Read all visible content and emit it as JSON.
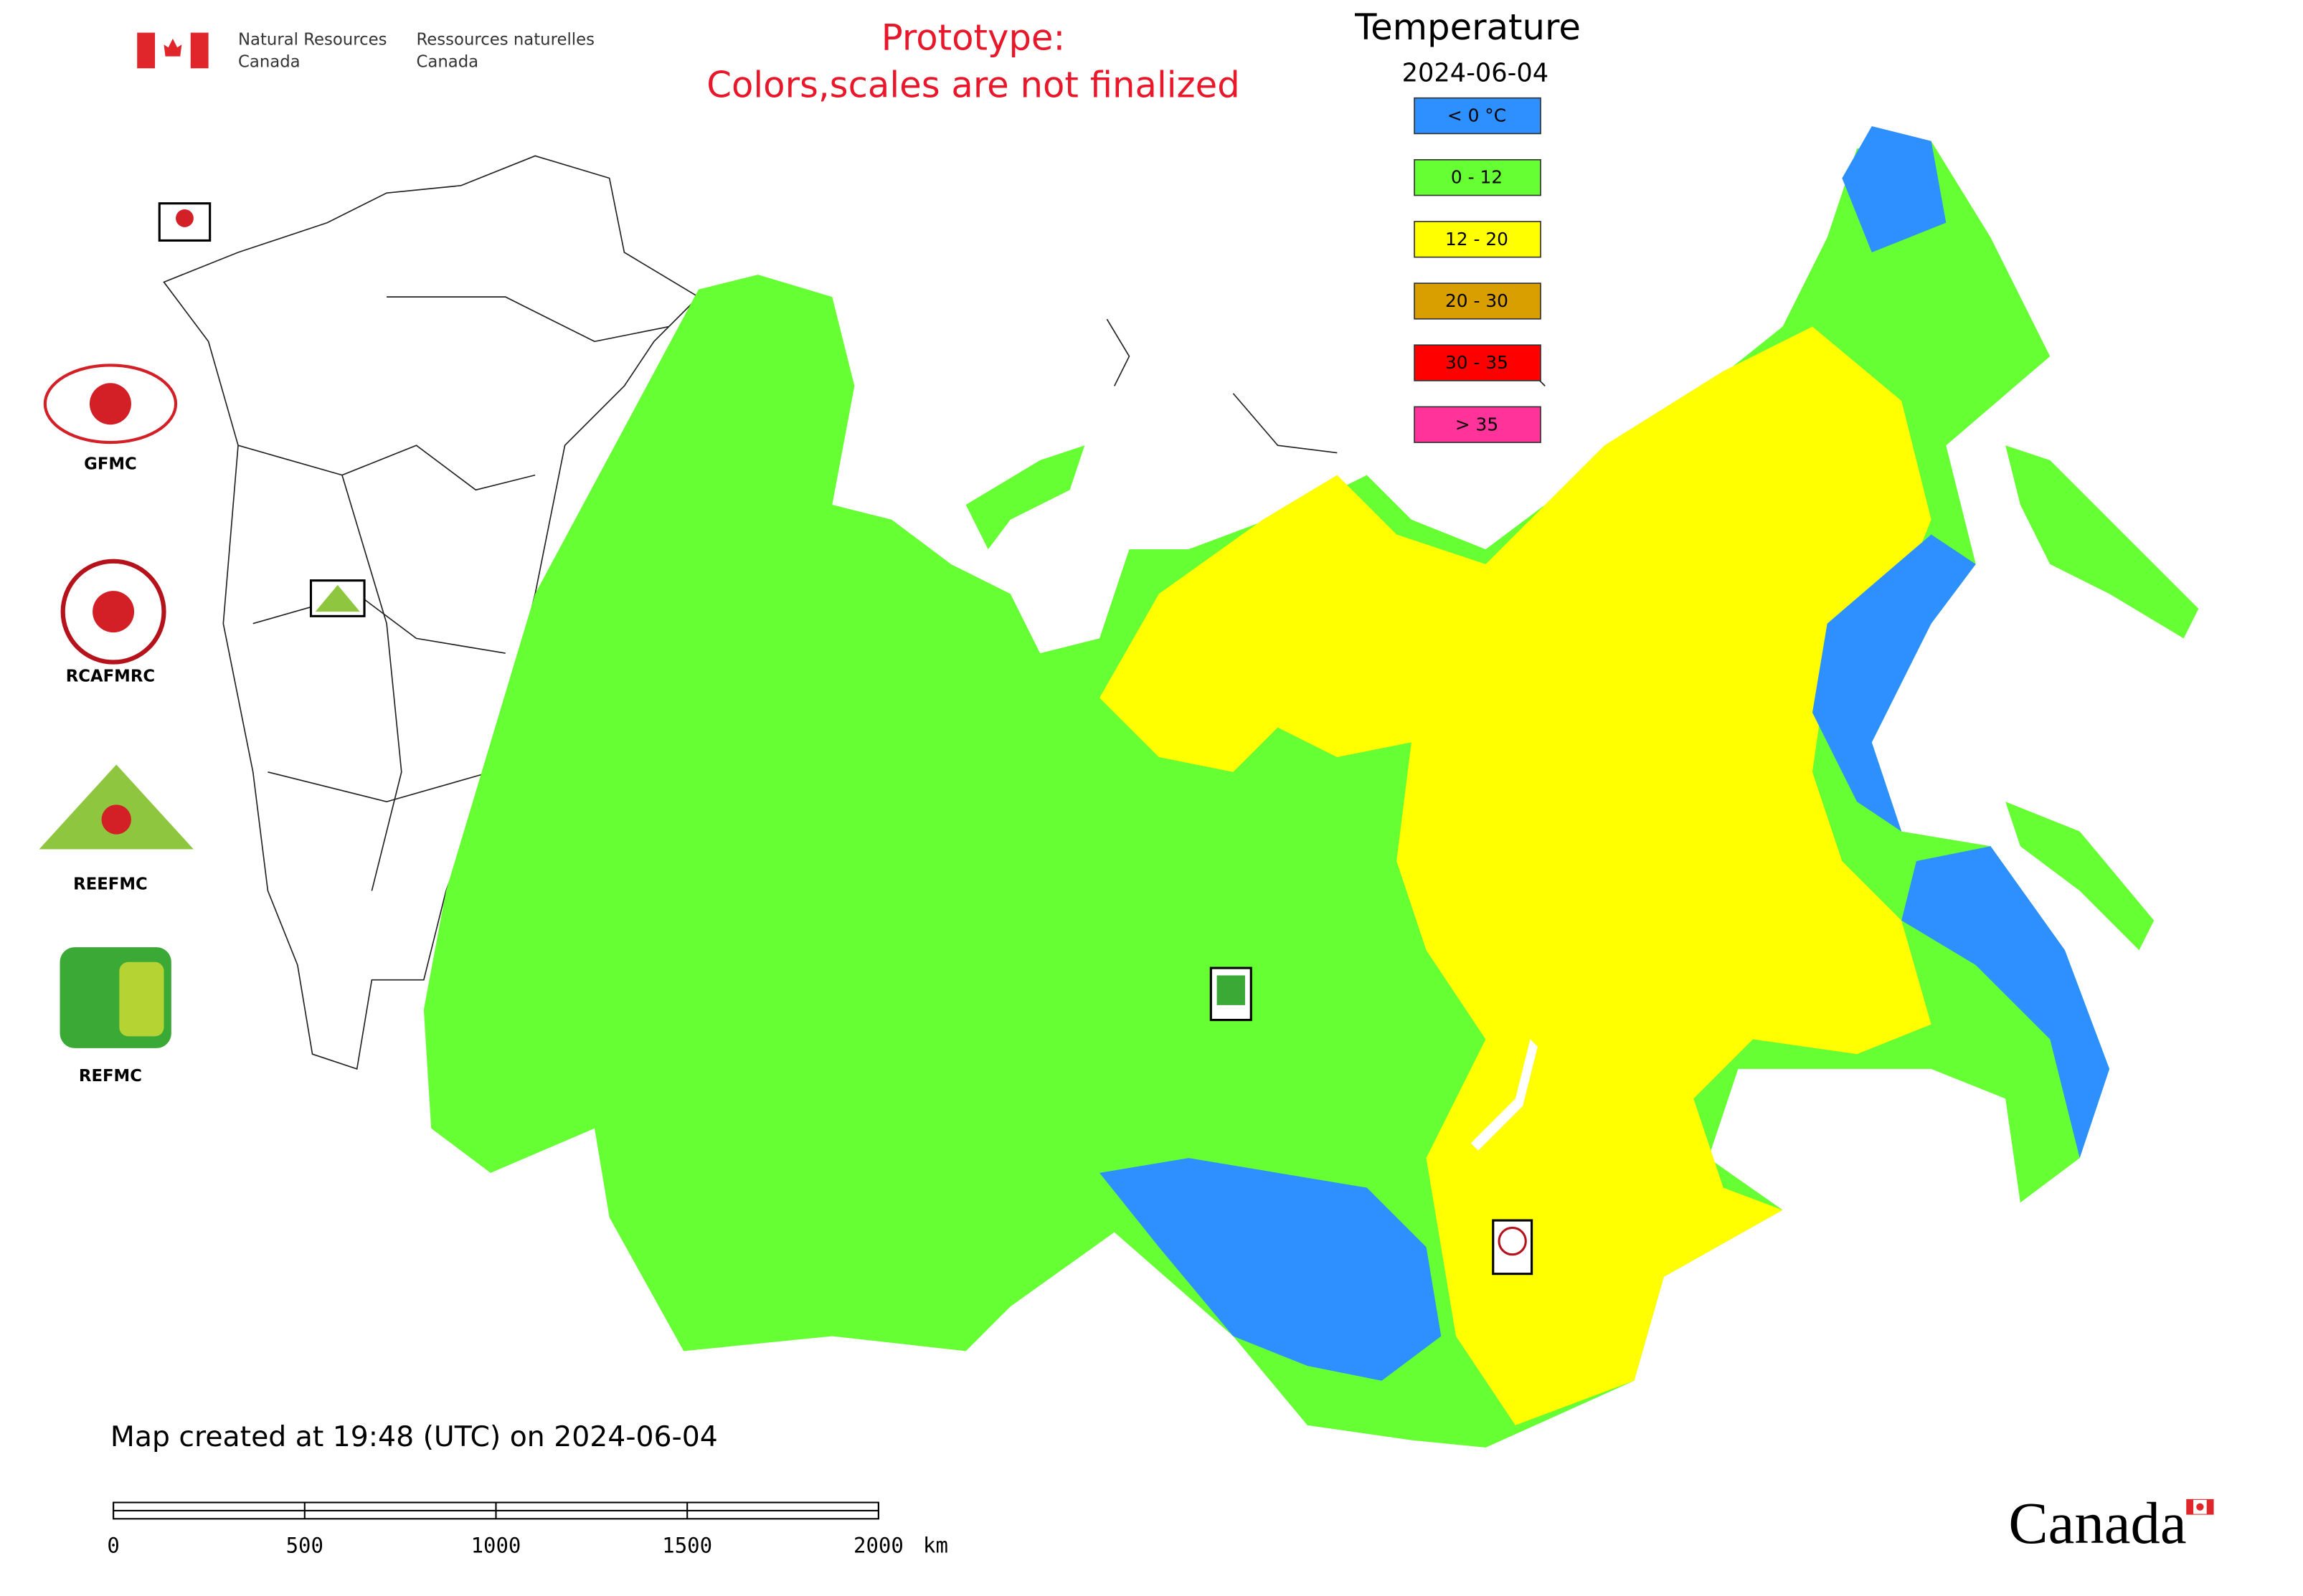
{
  "header": {
    "agency_en_1": "Natural Resources",
    "agency_en_2": "Canada",
    "agency_fr_1": "Ressources naturelles",
    "agency_fr_2": "Canada",
    "notice_1": "Prototype:",
    "notice_2": "Colors,scales are not finalized"
  },
  "legend": {
    "title": "Temperature",
    "date": "2024-06-04",
    "items": [
      {
        "label": "< 0 °C",
        "color": "#2e8fff"
      },
      {
        "label": "0 - 12",
        "color": "#66ff33"
      },
      {
        "label": "12 - 20",
        "color": "#ffff00"
      },
      {
        "label": "20 - 30",
        "color": "#d99e00"
      },
      {
        "label": "30 - 35",
        "color": "#ff0000"
      },
      {
        "label": "> 35",
        "color": "#ff3399"
      }
    ]
  },
  "logos": [
    {
      "label": "GFMC"
    },
    {
      "label": "RCAFMRC"
    },
    {
      "label": "REEFMC"
    },
    {
      "label": "REFMC"
    }
  ],
  "footer": {
    "created": "Map created at 19:48 (UTC) on 2024-06-04",
    "wordmark": "Canada"
  },
  "scale_bar": {
    "ticks": [
      "0",
      "500",
      "1000",
      "1500",
      "2000"
    ],
    "unit": "km"
  }
}
